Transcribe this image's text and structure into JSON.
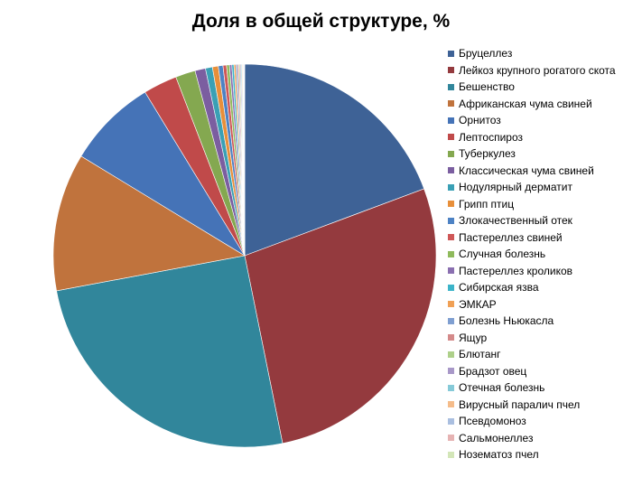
{
  "chart_data": {
    "type": "pie",
    "title": "Доля в общей структуре, %",
    "legend_position": "right",
    "start_angle_deg": 0,
    "direction": "clockwise",
    "slices": [
      {
        "label": "Бруцеллез",
        "value": 19.6,
        "color": "#3e6296"
      },
      {
        "label": "Лейкоз крупного рогатого скота",
        "value": 27.9,
        "color": "#943a3e"
      },
      {
        "label": "Бешенство",
        "value": 25.6,
        "color": "#31869b"
      },
      {
        "label": "Африканская чума свиней",
        "value": 11.8,
        "color": "#c0733d"
      },
      {
        "label": "Орнитоз",
        "value": 7.7,
        "color": "#4573b7"
      },
      {
        "label": "Лептоспироз",
        "value": 2.9,
        "color": "#c04a4a"
      },
      {
        "label": "Туберкулез",
        "value": 1.7,
        "color": "#84a850"
      },
      {
        "label": "Классическая чума свиней",
        "value": 0.9,
        "color": "#7b5ea0"
      },
      {
        "label": "Нодулярный дерматит",
        "value": 0.6,
        "color": "#3aa0b5"
      },
      {
        "label": "Грипп птиц",
        "value": 0.5,
        "color": "#e88f3a"
      },
      {
        "label": "Злокачественный отек",
        "value": 0.4,
        "color": "#4d82c4"
      },
      {
        "label": "Пастереллез свиней",
        "value": 0.3,
        "color": "#cf5757"
      },
      {
        "label": "Случная болезнь",
        "value": 0.25,
        "color": "#8fba5c"
      },
      {
        "label": "Пастереллез кроликов",
        "value": 0.2,
        "color": "#8a6fb0"
      },
      {
        "label": "Сибирская язва",
        "value": 0.18,
        "color": "#3cb4c9"
      },
      {
        "label": "ЭМКАР",
        "value": 0.16,
        "color": "#f0a055"
      },
      {
        "label": "Болезнь Ньюкасла",
        "value": 0.14,
        "color": "#7f9fd1"
      },
      {
        "label": "Ящур",
        "value": 0.12,
        "color": "#d48a8a"
      },
      {
        "label": "Блютанг",
        "value": 0.1,
        "color": "#aed08a"
      },
      {
        "label": "Брадзот овец",
        "value": 0.09,
        "color": "#a898c8"
      },
      {
        "label": "Отечная болезнь",
        "value": 0.08,
        "color": "#86cad8"
      },
      {
        "label": "Вирусный паралич пчел",
        "value": 0.07,
        "color": "#f5bc8a"
      },
      {
        "label": "Псевдомоноз",
        "value": 0.06,
        "color": "#aabfe0"
      },
      {
        "label": "Сальмонеллез",
        "value": 0.05,
        "color": "#e6b3b3"
      },
      {
        "label": "Нозематоз пчел",
        "value": 0.04,
        "color": "#d3e6b8"
      }
    ]
  }
}
